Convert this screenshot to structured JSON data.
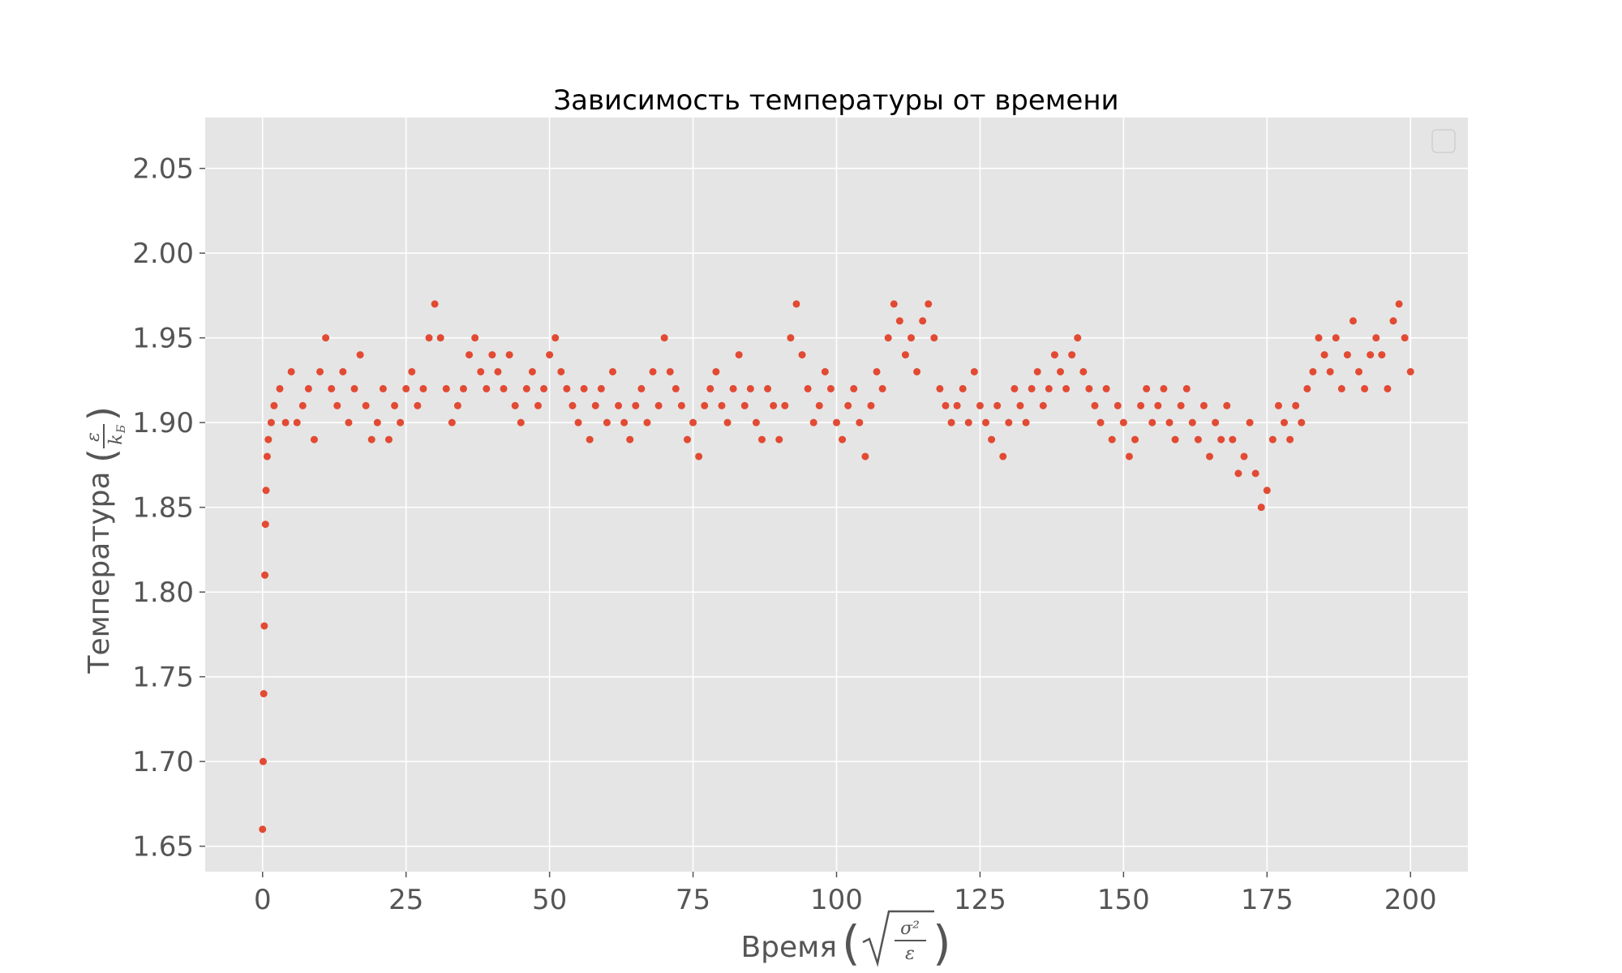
{
  "chart_data": {
    "type": "scatter",
    "title": "Зависимость температуры от времени",
    "xlabel": "Время",
    "ylabel": "Температура",
    "x_unit": {
      "numerator": "σ²",
      "denominator": "ε"
    },
    "y_unit": {
      "numerator": "ε",
      "denominator": "k",
      "denominator_sub": "Б"
    },
    "xlim": [
      -10,
      210
    ],
    "ylim": [
      1.635,
      2.08
    ],
    "xticks": [
      0,
      25,
      50,
      75,
      100,
      125,
      150,
      175,
      200
    ],
    "xtick_labels": [
      "0",
      "25",
      "50",
      "75",
      "100",
      "125",
      "150",
      "175",
      "200"
    ],
    "yticks": [
      1.65,
      1.7,
      1.75,
      1.8,
      1.85,
      1.9,
      1.95,
      2.0,
      2.05
    ],
    "ytick_labels": [
      "1.65",
      "1.70",
      "1.75",
      "1.80",
      "1.85",
      "1.90",
      "1.95",
      "2.00",
      "2.05"
    ],
    "grid": true,
    "legend": "top-right",
    "marker_color": "#E24A33",
    "background_color": "#E5E5E5",
    "series": [
      {
        "x": [
          0.0,
          0.1,
          0.2,
          0.3,
          0.4,
          0.5,
          0.6,
          0.8,
          1.0,
          1.5,
          2,
          3,
          4,
          5,
          6,
          7,
          8,
          9,
          10,
          11,
          12,
          13,
          14,
          15,
          16,
          17,
          18,
          19,
          20,
          21,
          22,
          23,
          24,
          25,
          26,
          27,
          28,
          29,
          30,
          31,
          32,
          33,
          34,
          35,
          36,
          37,
          38,
          39,
          40,
          41,
          42,
          43,
          44,
          45,
          46,
          47,
          48,
          49,
          50,
          51,
          52,
          53,
          54,
          55,
          56,
          57,
          58,
          59,
          60,
          61,
          62,
          63,
          64,
          65,
          66,
          67,
          68,
          69,
          70,
          71,
          72,
          73,
          74,
          75,
          76,
          77,
          78,
          79,
          80,
          81,
          82,
          83,
          84,
          85,
          86,
          87,
          88,
          89,
          90,
          91,
          92,
          93,
          94,
          95,
          96,
          97,
          98,
          99,
          100,
          101,
          102,
          103,
          104,
          105,
          106,
          107,
          108,
          109,
          110,
          111,
          112,
          113,
          114,
          115,
          116,
          117,
          118,
          119,
          120,
          121,
          122,
          123,
          124,
          125,
          126,
          127,
          128,
          129,
          130,
          131,
          132,
          133,
          134,
          135,
          136,
          137,
          138,
          139,
          140,
          141,
          142,
          143,
          144,
          145,
          146,
          147,
          148,
          149,
          150,
          151,
          152,
          153,
          154,
          155,
          156,
          157,
          158,
          159,
          160,
          161,
          162,
          163,
          164,
          165,
          166,
          167,
          168,
          169,
          170,
          171,
          172,
          173,
          174,
          175,
          176,
          177,
          178,
          179,
          180,
          181,
          182,
          183,
          184,
          185,
          186,
          187,
          188,
          189,
          190,
          191,
          192,
          193,
          194,
          195,
          196,
          197,
          198,
          199,
          200
        ],
        "y": [
          1.66,
          1.7,
          1.74,
          1.78,
          1.81,
          1.84,
          1.86,
          1.88,
          1.89,
          1.9,
          1.91,
          1.92,
          1.9,
          1.93,
          1.9,
          1.91,
          1.92,
          1.89,
          1.93,
          1.95,
          1.92,
          1.91,
          1.93,
          1.9,
          1.92,
          1.94,
          1.91,
          1.89,
          1.9,
          1.92,
          1.89,
          1.91,
          1.9,
          1.92,
          1.93,
          1.91,
          1.92,
          1.95,
          1.97,
          1.95,
          1.92,
          1.9,
          1.91,
          1.92,
          1.94,
          1.95,
          1.93,
          1.92,
          1.94,
          1.93,
          1.92,
          1.94,
          1.91,
          1.9,
          1.92,
          1.93,
          1.91,
          1.92,
          1.94,
          1.95,
          1.93,
          1.92,
          1.91,
          1.9,
          1.92,
          1.89,
          1.91,
          1.92,
          1.9,
          1.93,
          1.91,
          1.9,
          1.89,
          1.91,
          1.92,
          1.9,
          1.93,
          1.91,
          1.95,
          1.93,
          1.92,
          1.91,
          1.89,
          1.9,
          1.88,
          1.91,
          1.92,
          1.93,
          1.91,
          1.9,
          1.92,
          1.94,
          1.91,
          1.92,
          1.9,
          1.89,
          1.92,
          1.91,
          1.89,
          1.91,
          1.95,
          1.97,
          1.94,
          1.92,
          1.9,
          1.91,
          1.93,
          1.92,
          1.9,
          1.89,
          1.91,
          1.92,
          1.9,
          1.88,
          1.91,
          1.93,
          1.92,
          1.95,
          1.97,
          1.96,
          1.94,
          1.95,
          1.93,
          1.96,
          1.97,
          1.95,
          1.92,
          1.91,
          1.9,
          1.91,
          1.92,
          1.9,
          1.93,
          1.91,
          1.9,
          1.89,
          1.91,
          1.88,
          1.9,
          1.92,
          1.91,
          1.9,
          1.92,
          1.93,
          1.91,
          1.92,
          1.94,
          1.93,
          1.92,
          1.94,
          1.95,
          1.93,
          1.92,
          1.91,
          1.9,
          1.92,
          1.89,
          1.91,
          1.9,
          1.88,
          1.89,
          1.91,
          1.92,
          1.9,
          1.91,
          1.92,
          1.9,
          1.89,
          1.91,
          1.92,
          1.9,
          1.89,
          1.91,
          1.88,
          1.9,
          1.89,
          1.91,
          1.89,
          1.87,
          1.88,
          1.9,
          1.87,
          1.85,
          1.86,
          1.89,
          1.91,
          1.9,
          1.89,
          1.91,
          1.9,
          1.92,
          1.93,
          1.95,
          1.94,
          1.93,
          1.95,
          1.92,
          1.94,
          1.96,
          1.93,
          1.92,
          1.94,
          1.95,
          1.94,
          1.92,
          1.96,
          1.97,
          1.95,
          1.93
        ]
      }
    ]
  }
}
